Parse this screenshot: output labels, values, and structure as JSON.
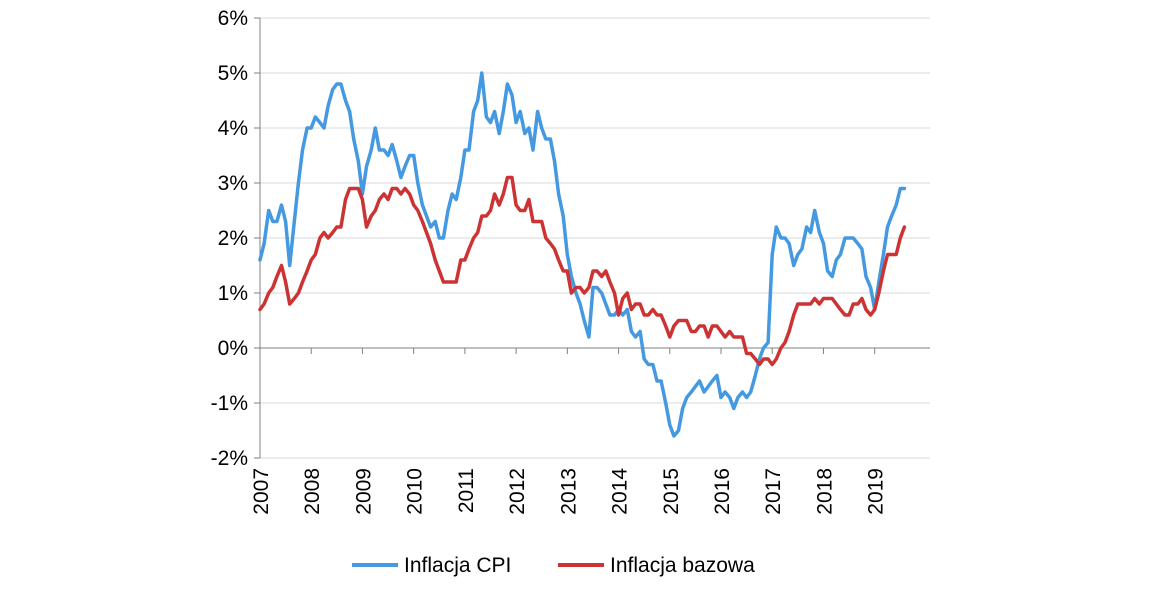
{
  "chart_data": {
    "type": "line",
    "title": "",
    "xlabel": "",
    "ylabel": "",
    "x_range": [
      2007.0,
      2019.58
    ],
    "ylim": [
      -2,
      6
    ],
    "y_ticks": [
      -2,
      -1,
      0,
      1,
      2,
      3,
      4,
      5,
      6
    ],
    "y_tick_labels": [
      "-2%",
      "-1%",
      "0%",
      "1%",
      "2%",
      "3%",
      "4%",
      "5%",
      "6%"
    ],
    "x_ticks": [
      2007,
      2008,
      2009,
      2010,
      2011,
      2012,
      2013,
      2014,
      2015,
      2016,
      2017,
      2018,
      2019
    ],
    "x_tick_labels": [
      "2007",
      "2008",
      "2009",
      "2010",
      "2011",
      "2012",
      "2013",
      "2014",
      "2015",
      "2016",
      "2017",
      "2018",
      "2019"
    ],
    "grid": "horizontal",
    "legend_position": "bottom",
    "series": [
      {
        "name": "Inflacja CPI",
        "color": "#4499e0",
        "x": [
          2007.0,
          2007.08,
          2007.17,
          2007.25,
          2007.33,
          2007.42,
          2007.5,
          2007.58,
          2007.67,
          2007.75,
          2007.83,
          2007.92,
          2008.0,
          2008.08,
          2008.17,
          2008.25,
          2008.33,
          2008.42,
          2008.5,
          2008.58,
          2008.67,
          2008.75,
          2008.83,
          2008.92,
          2009.0,
          2009.08,
          2009.17,
          2009.25,
          2009.33,
          2009.42,
          2009.5,
          2009.58,
          2009.67,
          2009.75,
          2009.83,
          2009.92,
          2010.0,
          2010.08,
          2010.17,
          2010.25,
          2010.33,
          2010.42,
          2010.5,
          2010.58,
          2010.67,
          2010.75,
          2010.83,
          2010.92,
          2011.0,
          2011.08,
          2011.17,
          2011.25,
          2011.33,
          2011.42,
          2011.5,
          2011.58,
          2011.67,
          2011.75,
          2011.83,
          2011.92,
          2012.0,
          2012.08,
          2012.17,
          2012.25,
          2012.33,
          2012.42,
          2012.5,
          2012.58,
          2012.67,
          2012.75,
          2012.83,
          2012.92,
          2013.0,
          2013.08,
          2013.17,
          2013.25,
          2013.33,
          2013.42,
          2013.5,
          2013.58,
          2013.67,
          2013.75,
          2013.83,
          2013.92,
          2014.0,
          2014.08,
          2014.17,
          2014.25,
          2014.33,
          2014.42,
          2014.5,
          2014.58,
          2014.67,
          2014.75,
          2014.83,
          2014.92,
          2015.0,
          2015.08,
          2015.17,
          2015.25,
          2015.33,
          2015.42,
          2015.5,
          2015.58,
          2015.67,
          2015.75,
          2015.83,
          2015.92,
          2016.0,
          2016.08,
          2016.17,
          2016.25,
          2016.33,
          2016.42,
          2016.5,
          2016.58,
          2016.67,
          2016.75,
          2016.83,
          2016.92,
          2017.0,
          2017.08,
          2017.17,
          2017.25,
          2017.33,
          2017.42,
          2017.5,
          2017.58,
          2017.67,
          2017.75,
          2017.83,
          2017.92,
          2018.0,
          2018.08,
          2018.17,
          2018.25,
          2018.33,
          2018.42,
          2018.5,
          2018.58,
          2018.67,
          2018.75,
          2018.83,
          2018.92,
          2019.0,
          2019.08,
          2019.17,
          2019.25,
          2019.33,
          2019.42,
          2019.5,
          2019.58
        ],
        "values": [
          1.6,
          1.9,
          2.5,
          2.3,
          2.3,
          2.6,
          2.3,
          1.5,
          2.3,
          3.0,
          3.6,
          4.0,
          4.0,
          4.2,
          4.1,
          4.0,
          4.4,
          4.7,
          4.8,
          4.8,
          4.5,
          4.3,
          3.8,
          3.4,
          2.8,
          3.3,
          3.6,
          4.0,
          3.6,
          3.6,
          3.5,
          3.7,
          3.4,
          3.1,
          3.3,
          3.5,
          3.5,
          3.0,
          2.6,
          2.4,
          2.2,
          2.3,
          2.0,
          2.0,
          2.5,
          2.8,
          2.7,
          3.1,
          3.6,
          3.6,
          4.3,
          4.5,
          5.0,
          4.2,
          4.1,
          4.3,
          3.9,
          4.3,
          4.8,
          4.6,
          4.1,
          4.3,
          3.9,
          4.0,
          3.6,
          4.3,
          4.0,
          3.8,
          3.8,
          3.4,
          2.8,
          2.4,
          1.7,
          1.3,
          1.0,
          0.8,
          0.5,
          0.2,
          1.1,
          1.1,
          1.0,
          0.8,
          0.6,
          0.6,
          0.7,
          0.6,
          0.7,
          0.3,
          0.2,
          0.3,
          -0.2,
          -0.3,
          -0.3,
          -0.6,
          -0.6,
          -1.0,
          -1.4,
          -1.6,
          -1.5,
          -1.1,
          -0.9,
          -0.8,
          -0.7,
          -0.6,
          -0.8,
          -0.7,
          -0.6,
          -0.5,
          -0.9,
          -0.8,
          -0.9,
          -1.1,
          -0.9,
          -0.8,
          -0.9,
          -0.8,
          -0.5,
          -0.2,
          -0.0,
          0.1,
          1.7,
          2.2,
          2.0,
          2.0,
          1.9,
          1.5,
          1.7,
          1.8,
          2.2,
          2.1,
          2.5,
          2.1,
          1.9,
          1.4,
          1.3,
          1.6,
          1.7,
          2.0,
          2.0,
          2.0,
          1.9,
          1.8,
          1.3,
          1.1,
          0.7,
          1.2,
          1.7,
          2.2,
          2.4,
          2.6,
          2.9,
          2.9
        ]
      },
      {
        "name": "Inflacja bazowa",
        "color": "#cc3333",
        "x": [
          2007.0,
          2007.08,
          2007.17,
          2007.25,
          2007.33,
          2007.42,
          2007.5,
          2007.58,
          2007.67,
          2007.75,
          2007.83,
          2007.92,
          2008.0,
          2008.08,
          2008.17,
          2008.25,
          2008.33,
          2008.42,
          2008.5,
          2008.58,
          2008.67,
          2008.75,
          2008.83,
          2008.92,
          2009.0,
          2009.08,
          2009.17,
          2009.25,
          2009.33,
          2009.42,
          2009.5,
          2009.58,
          2009.67,
          2009.75,
          2009.83,
          2009.92,
          2010.0,
          2010.08,
          2010.17,
          2010.25,
          2010.33,
          2010.42,
          2010.5,
          2010.58,
          2010.67,
          2010.75,
          2010.83,
          2010.92,
          2011.0,
          2011.08,
          2011.17,
          2011.25,
          2011.33,
          2011.42,
          2011.5,
          2011.58,
          2011.67,
          2011.75,
          2011.83,
          2011.92,
          2012.0,
          2012.08,
          2012.17,
          2012.25,
          2012.33,
          2012.42,
          2012.5,
          2012.58,
          2012.67,
          2012.75,
          2012.83,
          2012.92,
          2013.0,
          2013.08,
          2013.17,
          2013.25,
          2013.33,
          2013.42,
          2013.5,
          2013.58,
          2013.67,
          2013.75,
          2013.83,
          2013.92,
          2014.0,
          2014.08,
          2014.17,
          2014.25,
          2014.33,
          2014.42,
          2014.5,
          2014.58,
          2014.67,
          2014.75,
          2014.83,
          2014.92,
          2015.0,
          2015.08,
          2015.17,
          2015.25,
          2015.33,
          2015.42,
          2015.5,
          2015.58,
          2015.67,
          2015.75,
          2015.83,
          2015.92,
          2016.0,
          2016.08,
          2016.17,
          2016.25,
          2016.33,
          2016.42,
          2016.5,
          2016.58,
          2016.67,
          2016.75,
          2016.83,
          2016.92,
          2017.0,
          2017.08,
          2017.17,
          2017.25,
          2017.33,
          2017.42,
          2017.5,
          2017.58,
          2017.67,
          2017.75,
          2017.83,
          2017.92,
          2018.0,
          2018.08,
          2018.17,
          2018.25,
          2018.33,
          2018.42,
          2018.5,
          2018.58,
          2018.67,
          2018.75,
          2018.83,
          2018.92,
          2019.0,
          2019.08,
          2019.17,
          2019.25,
          2019.33,
          2019.42,
          2019.5,
          2019.58
        ],
        "values": [
          0.7,
          0.8,
          1.0,
          1.1,
          1.3,
          1.5,
          1.2,
          0.8,
          0.9,
          1.0,
          1.2,
          1.4,
          1.6,
          1.7,
          2.0,
          2.1,
          2.0,
          2.1,
          2.2,
          2.2,
          2.7,
          2.9,
          2.9,
          2.9,
          2.7,
          2.2,
          2.4,
          2.5,
          2.7,
          2.8,
          2.7,
          2.9,
          2.9,
          2.8,
          2.9,
          2.8,
          2.6,
          2.5,
          2.3,
          2.1,
          1.9,
          1.6,
          1.4,
          1.2,
          1.2,
          1.2,
          1.2,
          1.6,
          1.6,
          1.8,
          2.0,
          2.1,
          2.4,
          2.4,
          2.5,
          2.8,
          2.6,
          2.8,
          3.1,
          3.1,
          2.6,
          2.5,
          2.5,
          2.7,
          2.3,
          2.3,
          2.3,
          2.0,
          1.9,
          1.8,
          1.6,
          1.4,
          1.4,
          1.0,
          1.1,
          1.1,
          1.0,
          1.1,
          1.4,
          1.4,
          1.3,
          1.4,
          1.2,
          1.0,
          0.6,
          0.9,
          1.0,
          0.7,
          0.8,
          0.8,
          0.6,
          0.6,
          0.7,
          0.6,
          0.6,
          0.4,
          0.2,
          0.4,
          0.5,
          0.5,
          0.5,
          0.3,
          0.3,
          0.4,
          0.4,
          0.2,
          0.4,
          0.4,
          0.3,
          0.2,
          0.3,
          0.2,
          0.2,
          0.2,
          -0.1,
          -0.1,
          -0.2,
          -0.3,
          -0.2,
          -0.2,
          -0.3,
          -0.2,
          0.0,
          0.1,
          0.3,
          0.6,
          0.8,
          0.8,
          0.8,
          0.8,
          0.9,
          0.8,
          0.9,
          0.9,
          0.9,
          0.8,
          0.7,
          0.6,
          0.6,
          0.8,
          0.8,
          0.9,
          0.7,
          0.6,
          0.7,
          1.0,
          1.4,
          1.7,
          1.7,
          1.7,
          2.0,
          2.2
        ]
      }
    ]
  }
}
